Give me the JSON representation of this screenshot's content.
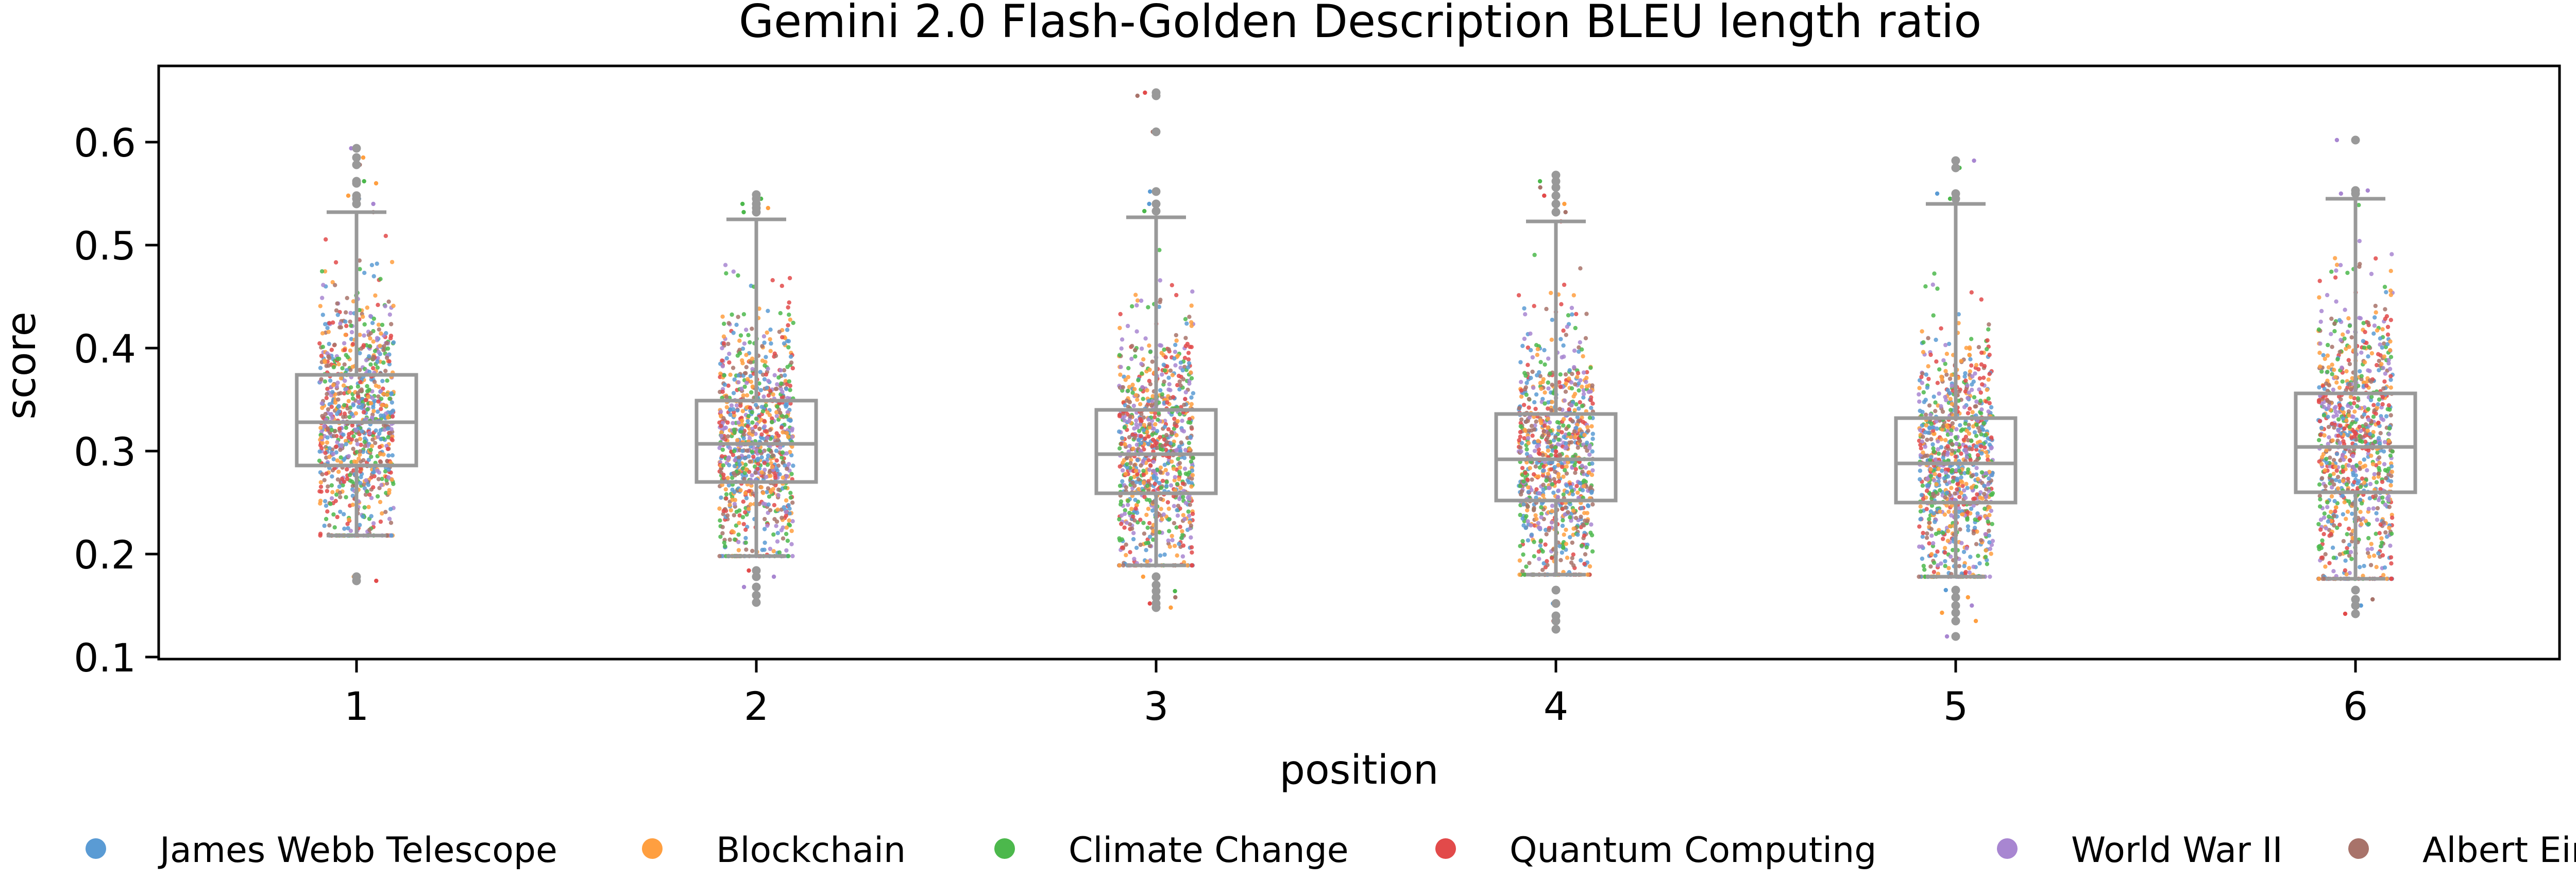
{
  "chart_data": {
    "type": "box-strip",
    "title": "Gemini 2.0 Flash-Golden Description BLEU length ratio",
    "xlabel": "position",
    "ylabel": "score",
    "categories": [
      "1",
      "2",
      "3",
      "4",
      "5",
      "6"
    ],
    "ylim": [
      0.1,
      0.67
    ],
    "yticks": [
      "0.1",
      "0.2",
      "0.3",
      "0.4",
      "0.5",
      "0.6"
    ],
    "grid": false,
    "legend_placement": "bottom",
    "box_color": "#999999",
    "boxes": [
      {
        "position": "1",
        "whisker_low": 0.218,
        "q1": 0.286,
        "median": 0.328,
        "q3": 0.374,
        "whisker_high": 0.532,
        "outliers": [
          0.174,
          0.178,
          0.54,
          0.545,
          0.548,
          0.56,
          0.562,
          0.578,
          0.585,
          0.594
        ]
      },
      {
        "position": "2",
        "whisker_low": 0.198,
        "q1": 0.27,
        "median": 0.307,
        "q3": 0.349,
        "whisker_high": 0.525,
        "outliers": [
          0.153,
          0.16,
          0.168,
          0.178,
          0.184,
          0.532,
          0.536,
          0.54,
          0.545,
          0.549
        ]
      },
      {
        "position": "3",
        "whisker_low": 0.189,
        "q1": 0.259,
        "median": 0.297,
        "q3": 0.34,
        "whisker_high": 0.527,
        "outliers": [
          0.148,
          0.152,
          0.158,
          0.164,
          0.17,
          0.178,
          0.533,
          0.54,
          0.552,
          0.61,
          0.645,
          0.648
        ]
      },
      {
        "position": "4",
        "whisker_low": 0.18,
        "q1": 0.252,
        "median": 0.292,
        "q3": 0.336,
        "whisker_high": 0.523,
        "outliers": [
          0.127,
          0.135,
          0.14,
          0.152,
          0.165,
          0.532,
          0.54,
          0.548,
          0.556,
          0.562,
          0.568
        ]
      },
      {
        "position": "5",
        "whisker_low": 0.178,
        "q1": 0.25,
        "median": 0.288,
        "q3": 0.332,
        "whisker_high": 0.54,
        "outliers": [
          0.12,
          0.135,
          0.143,
          0.15,
          0.158,
          0.165,
          0.545,
          0.55,
          0.575,
          0.582
        ]
      },
      {
        "position": "6",
        "whisker_low": 0.176,
        "q1": 0.26,
        "median": 0.304,
        "q3": 0.356,
        "whisker_high": 0.545,
        "outliers": [
          0.142,
          0.15,
          0.156,
          0.165,
          0.55,
          0.553,
          0.602
        ]
      }
    ],
    "series": [
      {
        "name": "James Webb Telescope",
        "color": "#5a9bd4"
      },
      {
        "name": "Blockchain",
        "color": "#ff9f40"
      },
      {
        "name": "Climate Change",
        "color": "#4cb84c"
      },
      {
        "name": "Quantum Computing",
        "color": "#e24a4a"
      },
      {
        "name": "World War II",
        "color": "#a886d1"
      },
      {
        "name": "Albert Einstein",
        "color": "#a8736a"
      }
    ]
  }
}
